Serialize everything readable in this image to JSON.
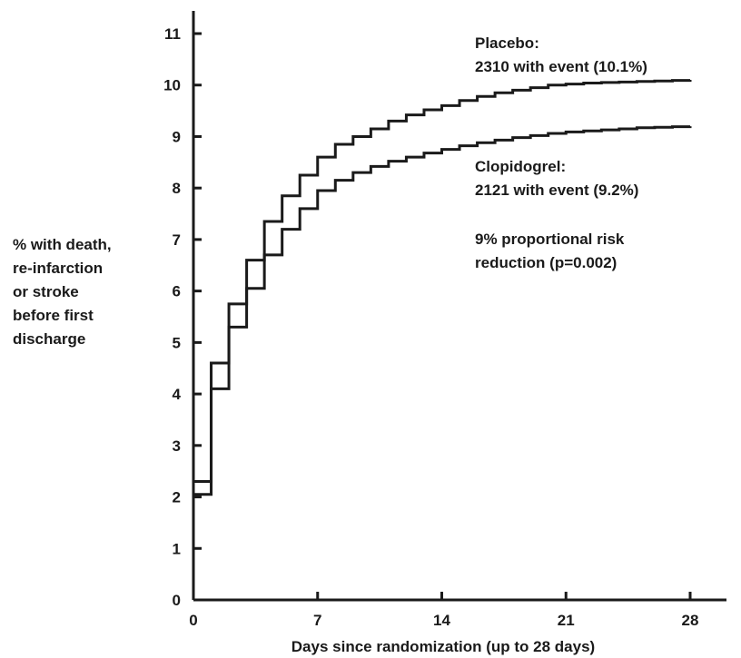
{
  "chart_data": {
    "type": "line",
    "title": "",
    "xlabel": "Days since randomization (up to 28 days)",
    "ylabel_lines": [
      "% with death,",
      "re-infarction",
      "or stroke",
      "before first",
      "discharge"
    ],
    "xlim": [
      0,
      28
    ],
    "ylim": [
      0,
      11
    ],
    "x_ticks": [
      0,
      7,
      14,
      21,
      28
    ],
    "y_ticks": [
      0,
      1,
      2,
      3,
      4,
      5,
      6,
      7,
      8,
      9,
      10,
      11
    ],
    "grid": false,
    "series": [
      {
        "name": "Placebo",
        "step": true,
        "points": [
          [
            0,
            2.3
          ],
          [
            1,
            4.6
          ],
          [
            2,
            5.75
          ],
          [
            3,
            6.6
          ],
          [
            4,
            7.35
          ],
          [
            5,
            7.85
          ],
          [
            6,
            8.25
          ],
          [
            7,
            8.6
          ],
          [
            8,
            8.85
          ],
          [
            9,
            9.0
          ],
          [
            10,
            9.15
          ],
          [
            11,
            9.3
          ],
          [
            12,
            9.42
          ],
          [
            13,
            9.52
          ],
          [
            14,
            9.6
          ],
          [
            15,
            9.7
          ],
          [
            16,
            9.78
          ],
          [
            17,
            9.85
          ],
          [
            18,
            9.9
          ],
          [
            19,
            9.95
          ],
          [
            20,
            10.0
          ],
          [
            21,
            10.02
          ],
          [
            22,
            10.04
          ],
          [
            23,
            10.05
          ],
          [
            24,
            10.06
          ],
          [
            25,
            10.07
          ],
          [
            26,
            10.08
          ],
          [
            27,
            10.09
          ],
          [
            28,
            10.1
          ]
        ],
        "color": "#1a1a1a"
      },
      {
        "name": "Clopidogrel",
        "step": true,
        "points": [
          [
            0,
            2.05
          ],
          [
            1,
            4.1
          ],
          [
            2,
            5.3
          ],
          [
            3,
            6.05
          ],
          [
            4,
            6.7
          ],
          [
            5,
            7.2
          ],
          [
            6,
            7.6
          ],
          [
            7,
            7.95
          ],
          [
            8,
            8.15
          ],
          [
            9,
            8.3
          ],
          [
            10,
            8.42
          ],
          [
            11,
            8.52
          ],
          [
            12,
            8.6
          ],
          [
            13,
            8.68
          ],
          [
            14,
            8.75
          ],
          [
            15,
            8.82
          ],
          [
            16,
            8.88
          ],
          [
            17,
            8.93
          ],
          [
            18,
            8.98
          ],
          [
            19,
            9.02
          ],
          [
            20,
            9.06
          ],
          [
            21,
            9.09
          ],
          [
            22,
            9.11
          ],
          [
            23,
            9.13
          ],
          [
            24,
            9.15
          ],
          [
            25,
            9.17
          ],
          [
            26,
            9.18
          ],
          [
            27,
            9.19
          ],
          [
            28,
            9.2
          ]
        ],
        "color": "#1a1a1a"
      }
    ],
    "annotations": {
      "placebo_line1": "Placebo:",
      "placebo_line2": "2310 with event (10.1%)",
      "clopidogrel_line1": "Clopidogrel:",
      "clopidogrel_line2": "2121 with event (9.2%)",
      "risk_line1": "9% proportional risk",
      "risk_line2": "reduction (p=0.002)"
    }
  }
}
